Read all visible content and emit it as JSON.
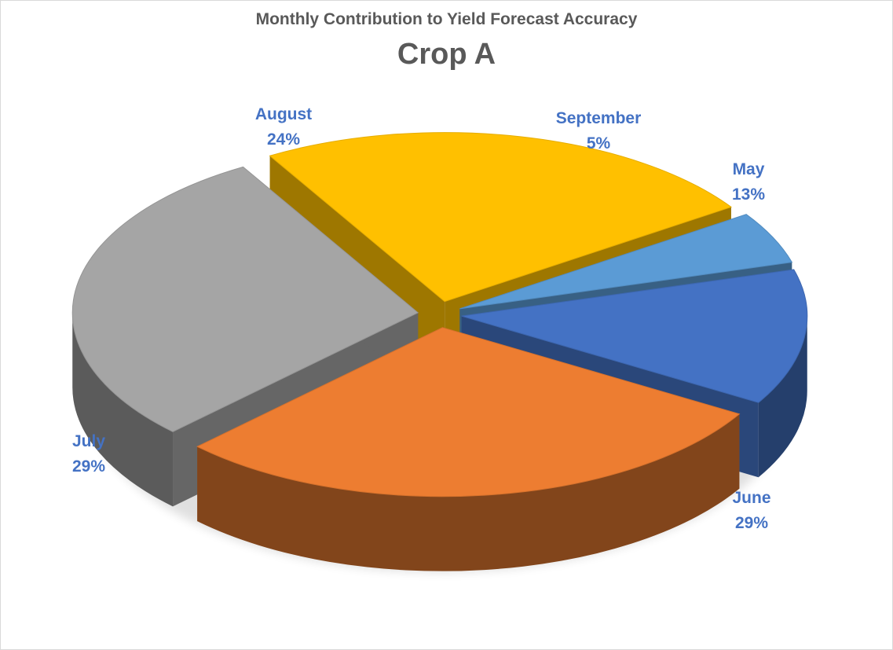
{
  "chart_data": {
    "type": "pie",
    "style": "3d-exploded",
    "title": "Monthly Contribution to Yield Forecast Accuracy",
    "subtitle": "Crop A",
    "categories": [
      "May",
      "June",
      "July",
      "August",
      "September"
    ],
    "values": [
      13,
      29,
      29,
      24,
      5
    ],
    "labels": [
      "13%",
      "29%",
      "29%",
      "24%",
      "5%"
    ],
    "colors": [
      "#4472C4",
      "#ED7D31",
      "#A5A5A5",
      "#FFC000",
      "#5B9BD5"
    ],
    "label_color": "#4472C4",
    "legend": "none"
  }
}
